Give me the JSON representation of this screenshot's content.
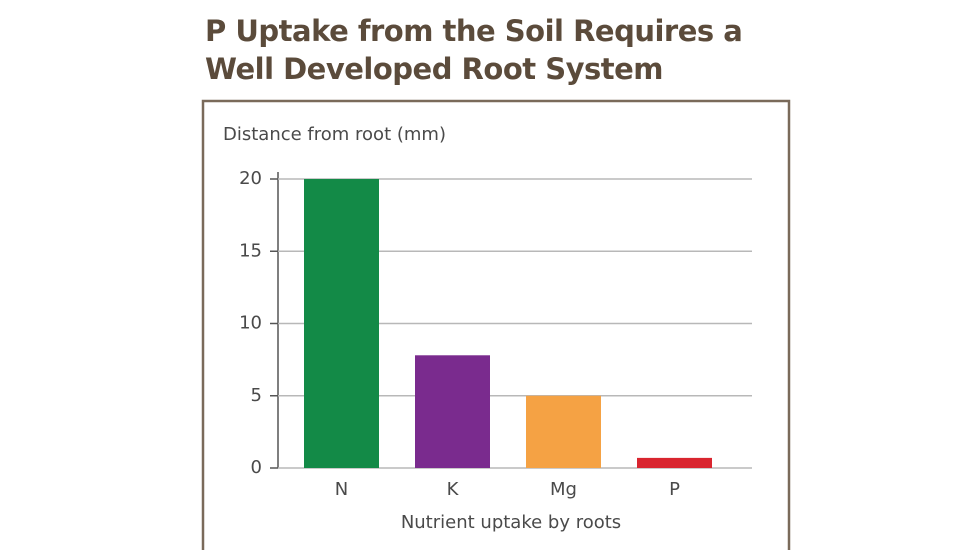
{
  "chart_data": {
    "type": "bar",
    "title": "P Uptake from the Soil Requires a Well Developed Root System",
    "y_label": "Distance from root (mm)",
    "x_label": "Nutrient uptake by roots",
    "categories": [
      "N",
      "K",
      "Mg",
      "P"
    ],
    "values": [
      20,
      7.8,
      5,
      0.7
    ],
    "colors": [
      "#138a47",
      "#7a2b8e",
      "#f5a244",
      "#d9252f"
    ],
    "ylim": [
      0,
      20
    ],
    "yticks": [
      0,
      5,
      10,
      15,
      20
    ],
    "grid": true
  }
}
